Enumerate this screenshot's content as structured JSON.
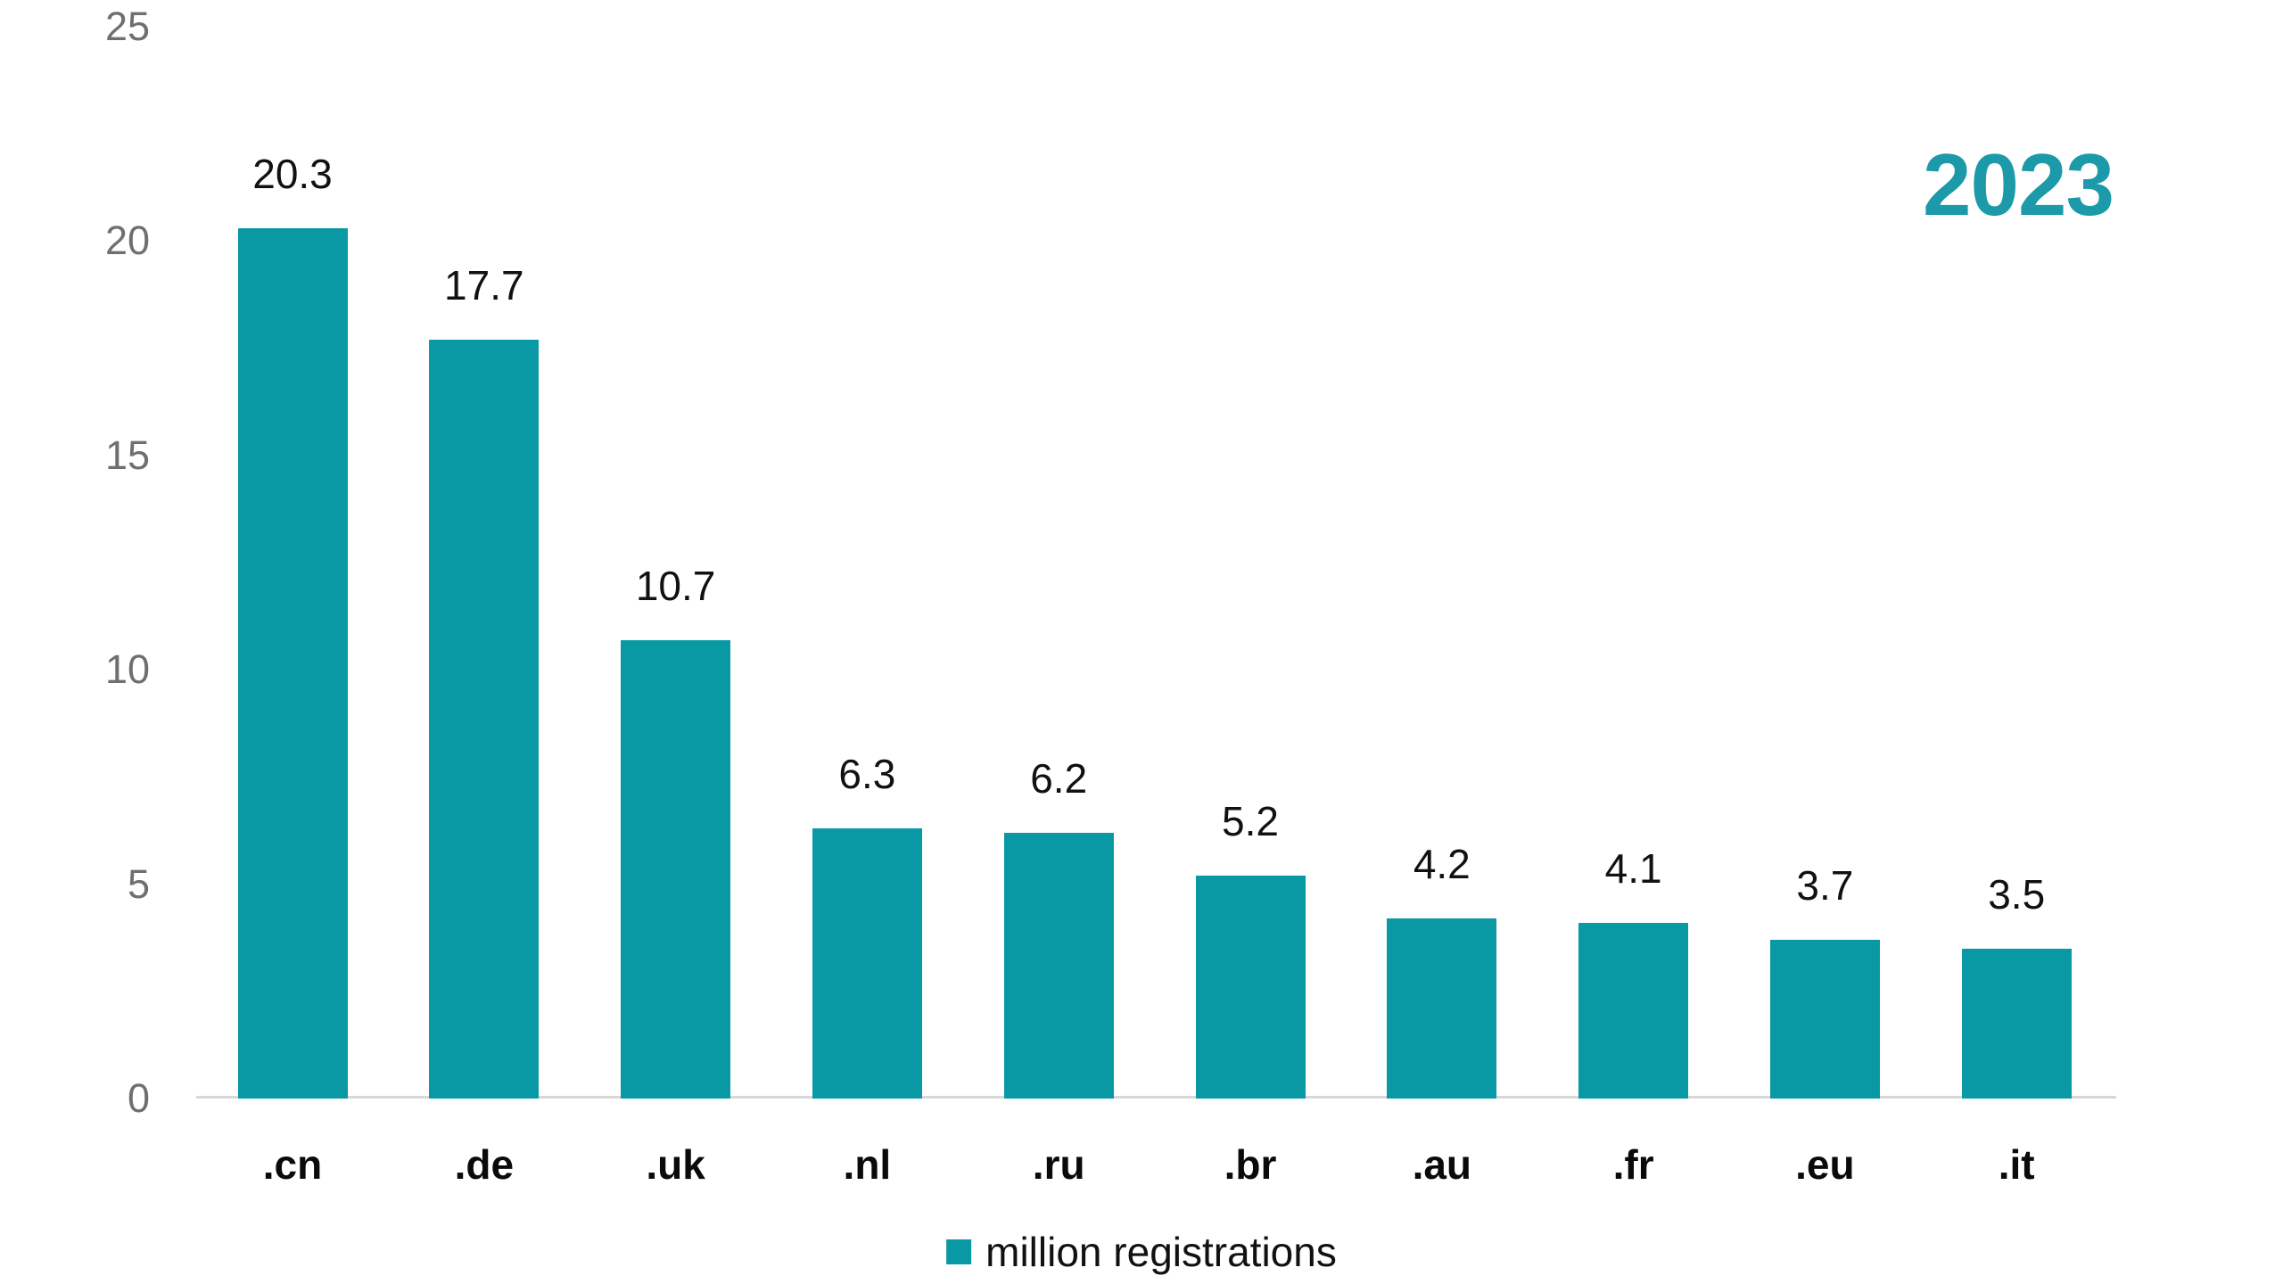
{
  "title": {
    "year": "2023",
    "color": "#1C9AA9"
  },
  "legend": {
    "label": "million registrations",
    "swatch_color": "#0999A5"
  },
  "axis": {
    "tick_color": "#6F6F6F",
    "line_color": "#D8D8D8"
  },
  "chart_data": {
    "type": "bar",
    "title": "2023",
    "categories": [
      ".cn",
      ".de",
      ".uk",
      ".nl",
      ".ru",
      ".br",
      ".au",
      ".fr",
      ".eu",
      ".it"
    ],
    "values": [
      20.3,
      17.7,
      10.7,
      6.3,
      6.2,
      5.2,
      4.2,
      4.1,
      3.7,
      3.5
    ],
    "value_labels": [
      "20.3",
      "17.7",
      "10.7",
      "6.3",
      "6.2",
      "5.2",
      "4.2",
      "4.1",
      "3.7",
      "3.5"
    ],
    "series_name": "million registrations",
    "xlabel": "",
    "ylabel": "",
    "ylim": [
      0,
      25
    ],
    "yticks": [
      0,
      5,
      10,
      15,
      20,
      25
    ],
    "ytick_labels": [
      "0",
      "5",
      "10",
      "15",
      "20",
      "25"
    ],
    "bar_color": "#0999A5",
    "grid": false,
    "legend_position": "bottom-center"
  }
}
